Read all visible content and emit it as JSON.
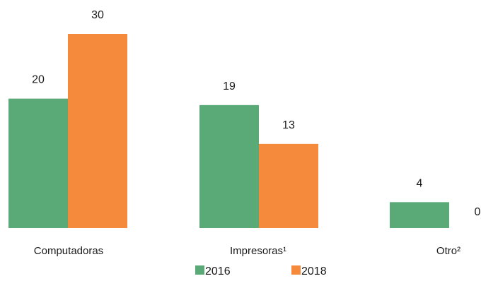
{
  "chart_data": {
    "type": "bar",
    "categories": [
      "Computadoras",
      "Impresoras¹",
      "Otro²"
    ],
    "series": [
      {
        "name": "2016",
        "values": [
          20,
          19,
          4
        ],
        "color": "#5aaa78"
      },
      {
        "name": "2018",
        "values": [
          30,
          13,
          0
        ],
        "color": "#f58a3c"
      }
    ],
    "title": "",
    "xlabel": "",
    "ylabel": "",
    "ylim": [
      0,
      30
    ],
    "grid": false,
    "legend_position": "bottom"
  }
}
